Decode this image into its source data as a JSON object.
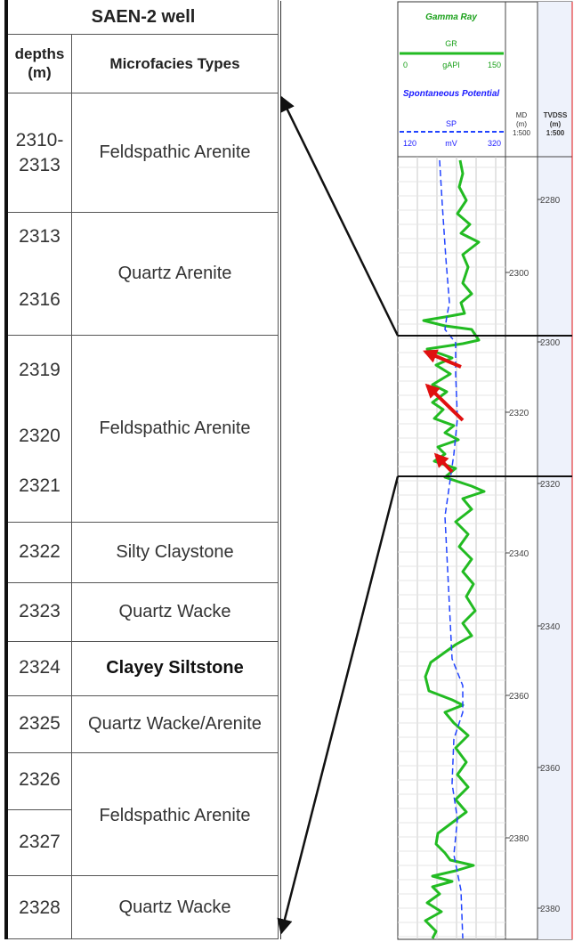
{
  "table": {
    "title": "SAEN-2 well",
    "col_depth_header": "depths\n(m)",
    "col_facies_header": "Microfacies Types",
    "rows": [
      {
        "depth_lines": [
          "2310-",
          "2313"
        ],
        "facies": "Feldspathic Arenite",
        "bold": false
      },
      {
        "depth_lines": [
          "2313",
          "2316"
        ],
        "facies": "Quartz Arenite",
        "bold": false
      },
      {
        "depth_lines": [
          "2319",
          "2320",
          "2321"
        ],
        "facies": "Feldspathic Arenite",
        "bold": false
      },
      {
        "depth_lines": [
          "2322"
        ],
        "facies": "Silty Claystone",
        "bold": false
      },
      {
        "depth_lines": [
          "2323"
        ],
        "facies": "Quartz Wacke",
        "bold": false
      },
      {
        "depth_lines": [
          "2324"
        ],
        "facies": "Clayey Siltstone",
        "bold": true
      },
      {
        "depth_lines": [
          "2325"
        ],
        "facies": "Quartz Wacke/Arenite",
        "bold": false
      },
      {
        "depth_lines": [
          "2326",
          "2327"
        ],
        "facies": "Feldspathic Arenite",
        "bold": false
      },
      {
        "depth_lines": [
          "2328"
        ],
        "facies": "Quartz Wacke",
        "bold": false
      }
    ]
  },
  "log": {
    "gamma_ray_title": "Gamma Ray",
    "gr_label": "GR",
    "gr_unit": "gAPI",
    "gr_min": "0",
    "gr_max": "150",
    "sp_title": "Spontaneous Potential",
    "sp_label": "SP",
    "sp_unit": "mV",
    "sp_min": "120",
    "sp_max": "320",
    "md_header": "MD\n(m)\n1:500",
    "tvdss_header": "TVDSS\n(m)\n1:500",
    "md_ticks": [
      "2300",
      "2320",
      "2340",
      "2360",
      "2380"
    ],
    "tvdss_ticks": [
      "2280",
      "2300",
      "2320",
      "2340",
      "2360",
      "2380"
    ],
    "colors": {
      "gr": "#22bb22",
      "sp": "#2244ff",
      "arrow": "#e01010",
      "title_green": "#1aa01a",
      "title_blue": "#1a1aff"
    }
  }
}
